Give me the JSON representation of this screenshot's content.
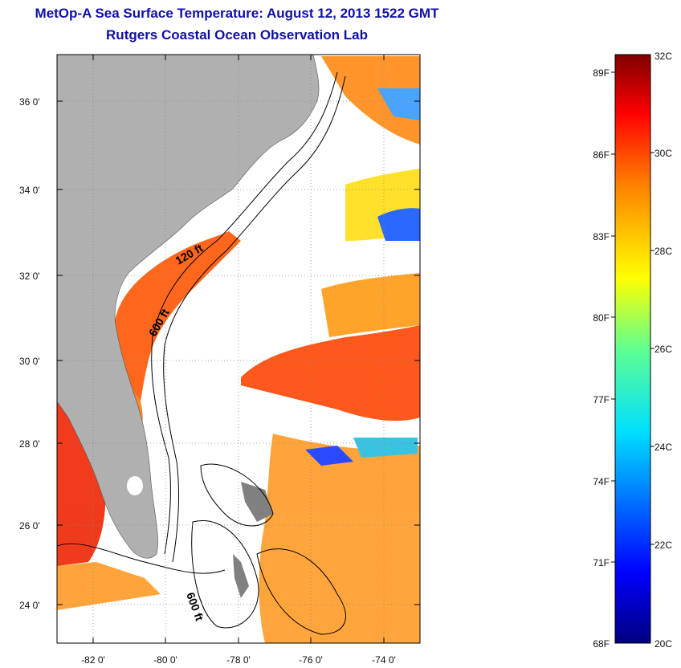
{
  "title": {
    "line1": "MetOp-A Sea Surface Temperature:  August 12, 2013 1522 GMT",
    "line2": "Rutgers Coastal Ocean Observation Lab"
  },
  "map": {
    "lat_range": [
      23,
      37
    ],
    "lon_range": [
      -83,
      -73
    ],
    "lat_ticks": [
      "24 0'",
      "26 0'",
      "28 0'",
      "30 0'",
      "32 0'",
      "34 0'",
      "36 0'"
    ],
    "lon_ticks": [
      "-82 0'",
      "-80 0'",
      "-78 0'",
      "-76 0'",
      "-74 0'"
    ],
    "depth_contours": [
      "120 ft",
      "600 ft",
      "600 ft"
    ],
    "colors": {
      "land": "#b0b0b0",
      "no_data": "#ffffff",
      "contour": "#000000"
    }
  },
  "colorbar": {
    "celsius_labels": [
      "32C",
      "30C",
      "28C",
      "26C",
      "24C",
      "22C",
      "20C"
    ],
    "fahrenheit_labels": [
      "89F",
      "86F",
      "83F",
      "80F",
      "77F",
      "74F",
      "71F",
      "68F"
    ],
    "range_c": [
      20,
      32
    ],
    "colormap": "jet"
  }
}
